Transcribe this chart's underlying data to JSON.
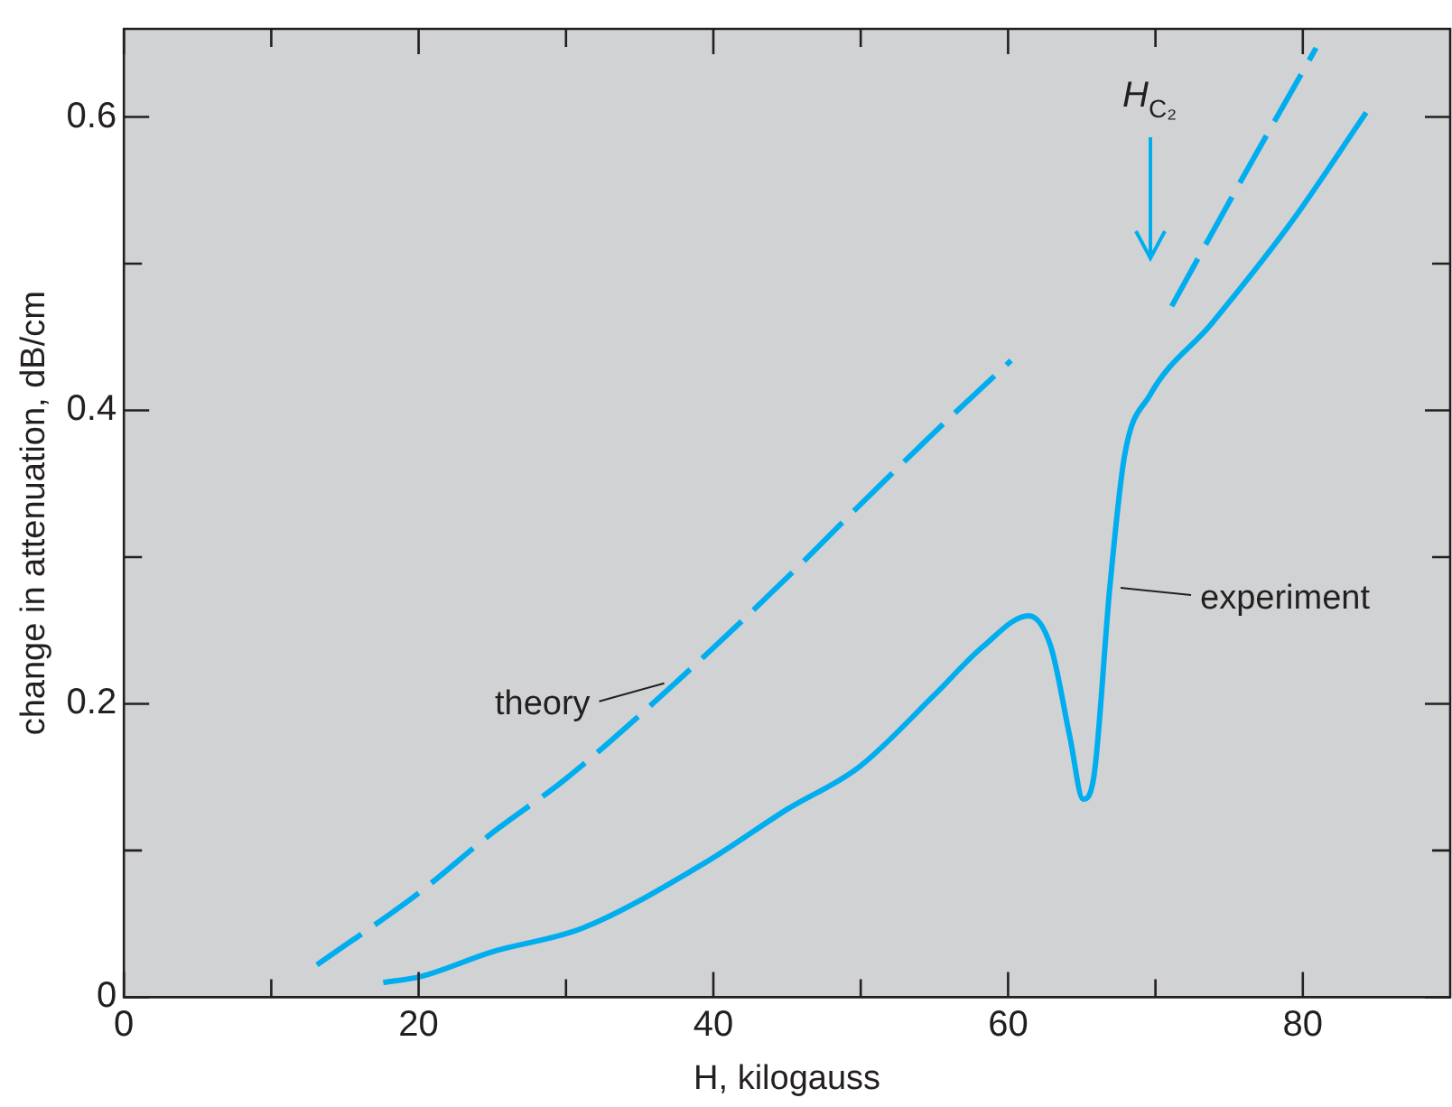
{
  "chart_data": {
    "type": "line",
    "xlabel": "H, kilogauss",
    "ylabel": "change in attenuation, dB/cm",
    "xlim": [
      0,
      90
    ],
    "xticks": [
      0,
      {
        "value": 10,
        "label": null
      },
      20,
      {
        "value": 30,
        "label": null
      },
      40,
      {
        "value": 50,
        "label": null
      },
      60,
      {
        "value": 70,
        "label": null
      },
      80
    ],
    "ylim": [
      0,
      0.66
    ],
    "yticks": [
      0,
      {
        "value": 0.1,
        "label": null
      },
      0.2,
      {
        "value": 0.3,
        "label": null
      },
      0.4,
      {
        "value": 0.5,
        "label": null
      },
      0.6
    ],
    "series": [
      {
        "name": "theory",
        "color": "#00aeef",
        "line_style": "dashed",
        "x": [
          13.1,
          20,
          25,
          30,
          37.4,
          45,
          50,
          55,
          60.2,
          65,
          71.1,
          76,
          80.9
        ],
        "values": [
          0.022,
          0.071,
          0.112,
          0.149,
          0.214,
          0.286,
          0.336,
          0.385,
          0.434,
          null,
          0.471,
          0.56,
          0.647
        ]
      },
      {
        "name": "experiment",
        "color": "#00aeef",
        "line_style": "solid",
        "x": [
          17.6,
          20.1,
          25,
          31.1,
          39.5,
          45,
          49.9,
          55,
          58.3,
          61.4,
          62.9,
          64.2,
          65.1,
          65.8,
          66.9,
          67.9,
          69.6,
          73.8,
          79.2,
          84.3
        ],
        "values": [
          0.01,
          0.014,
          0.031,
          0.047,
          0.092,
          0.128,
          0.157,
          0.206,
          0.239,
          0.26,
          0.239,
          0.177,
          0.135,
          0.149,
          0.279,
          0.369,
          0.41,
          0.459,
          0.528,
          0.603
        ]
      }
    ],
    "ref_lines": [
      {
        "axis": "x",
        "value": 69.6,
        "label": "H$_{C₂}$",
        "color": "#00aeef"
      }
    ],
    "marker": "none",
    "legend": false
  }
}
